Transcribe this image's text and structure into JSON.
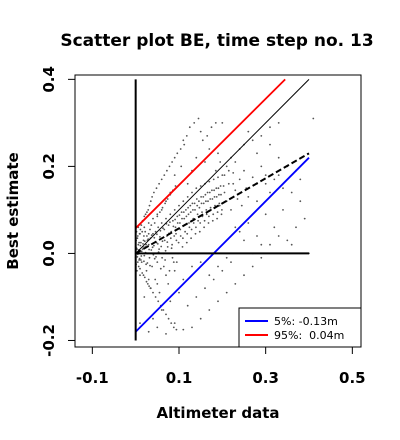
{
  "chart_data": {
    "type": "scatter",
    "title": "Scatter plot BE, time step no. 13",
    "xlabel": "Altimeter data",
    "ylabel": "Best estimate",
    "xlim": [
      -0.14,
      0.52
    ],
    "ylim": [
      -0.215,
      0.41
    ],
    "xticks": [
      -0.1,
      0.1,
      0.3,
      0.5
    ],
    "xtick_labels": [
      "-0.1",
      "0.1",
      "0.3",
      "0.5"
    ],
    "yticks": [
      -0.2,
      0.0,
      0.2,
      0.4
    ],
    "ytick_labels": [
      "-0.2",
      "0.0",
      "0.2",
      "0.4"
    ],
    "grid": false,
    "legend_position": "bottom-right",
    "colors": {
      "points": "#555555",
      "blue": "#0000ff",
      "red": "#ff0000",
      "black": "#000000"
    },
    "lines": [
      {
        "name": "5%: -0.13m",
        "legend_label": "5%: -0.13m",
        "style": "solid",
        "color": "#0000ff",
        "x": [
          0.0,
          0.4
        ],
        "y": [
          -0.18,
          0.22
        ]
      },
      {
        "name": "95%:  0.04m",
        "legend_label": "95%:  0.04m",
        "style": "solid",
        "color": "#ff0000",
        "x": [
          0.0,
          0.345
        ],
        "y": [
          0.058,
          0.4
        ]
      },
      {
        "name": "",
        "style": "thin",
        "color": "#000000",
        "x": [
          0.0,
          0.4
        ],
        "y": [
          0.0,
          0.4
        ]
      },
      {
        "name": "",
        "style": "dashed",
        "color": "#000000",
        "x": [
          0.0,
          0.4
        ],
        "y": [
          0.0,
          0.23
        ]
      },
      {
        "name": "",
        "style": "thick",
        "color": "#000000",
        "x": [
          0.0,
          0.4
        ],
        "y": [
          0.0,
          0.0
        ]
      },
      {
        "name": "",
        "style": "thick",
        "color": "#000000",
        "x": [
          0.0,
          0.0
        ],
        "y": [
          -0.2,
          0.4
        ]
      }
    ],
    "points": [
      [
        0.0,
        0.0
      ],
      [
        0.002,
        0.012
      ],
      [
        0.004,
        -0.008
      ],
      [
        0.006,
        0.02
      ],
      [
        0.008,
        -0.015
      ],
      [
        0.01,
        0.005
      ],
      [
        0.012,
        0.025
      ],
      [
        0.014,
        -0.02
      ],
      [
        0.016,
        0.01
      ],
      [
        0.018,
        0.03
      ],
      [
        0.02,
        -0.005
      ],
      [
        0.022,
        0.015
      ],
      [
        0.024,
        -0.025
      ],
      [
        0.026,
        0.04
      ],
      [
        0.028,
        0.0
      ],
      [
        0.03,
        0.02
      ],
      [
        0.032,
        -0.01
      ],
      [
        0.034,
        0.035
      ],
      [
        0.036,
        0.008
      ],
      [
        0.038,
        -0.03
      ],
      [
        0.04,
        0.045
      ],
      [
        0.042,
        0.018
      ],
      [
        0.044,
        -0.012
      ],
      [
        0.046,
        0.05
      ],
      [
        0.048,
        0.025
      ],
      [
        0.05,
        -0.02
      ],
      [
        0.052,
        0.06
      ],
      [
        0.054,
        0.01
      ],
      [
        0.056,
        0.038
      ],
      [
        0.058,
        -0.035
      ],
      [
        0.06,
        0.07
      ],
      [
        0.062,
        0.028
      ],
      [
        0.064,
        0.0
      ],
      [
        0.066,
        0.055
      ],
      [
        0.068,
        -0.015
      ],
      [
        0.07,
        0.08
      ],
      [
        0.072,
        0.04
      ],
      [
        0.074,
        0.015
      ],
      [
        0.076,
        0.065
      ],
      [
        0.078,
        -0.04
      ],
      [
        0.08,
        0.09
      ],
      [
        0.082,
        0.05
      ],
      [
        0.084,
        0.02
      ],
      [
        0.086,
        0.075
      ],
      [
        0.088,
        -0.02
      ],
      [
        0.09,
        0.1
      ],
      [
        0.092,
        0.06
      ],
      [
        0.094,
        0.03
      ],
      [
        0.096,
        0.085
      ],
      [
        0.098,
        0.0
      ],
      [
        0.1,
        0.11
      ],
      [
        0.102,
        0.07
      ],
      [
        0.104,
        0.04
      ],
      [
        0.106,
        0.095
      ],
      [
        0.108,
        0.015
      ],
      [
        0.11,
        0.12
      ],
      [
        0.112,
        0.08
      ],
      [
        0.114,
        0.05
      ],
      [
        0.116,
        0.1
      ],
      [
        0.118,
        0.025
      ],
      [
        0.12,
        0.13
      ],
      [
        0.122,
        0.09
      ],
      [
        0.124,
        0.06
      ],
      [
        0.126,
        0.11
      ],
      [
        0.128,
        0.035
      ],
      [
        0.13,
        0.14
      ],
      [
        0.132,
        0.1
      ],
      [
        0.134,
        0.07
      ],
      [
        0.136,
        0.115
      ],
      [
        0.138,
        0.045
      ],
      [
        0.14,
        0.15
      ],
      [
        0.142,
        0.11
      ],
      [
        0.144,
        0.075
      ],
      [
        0.146,
        0.12
      ],
      [
        0.148,
        0.05
      ],
      [
        0.15,
        0.155
      ],
      [
        0.152,
        0.115
      ],
      [
        0.154,
        0.085
      ],
      [
        0.156,
        0.13
      ],
      [
        0.158,
        0.06
      ],
      [
        0.16,
        0.16
      ],
      [
        0.162,
        0.12
      ],
      [
        0.164,
        0.09
      ],
      [
        0.166,
        0.14
      ],
      [
        0.168,
        0.07
      ],
      [
        0.17,
        0.165
      ],
      [
        0.172,
        0.125
      ],
      [
        0.174,
        0.1
      ],
      [
        0.176,
        0.145
      ],
      [
        0.178,
        0.075
      ],
      [
        0.18,
        0.17
      ],
      [
        0.182,
        0.13
      ],
      [
        0.184,
        0.105
      ],
      [
        0.186,
        0.15
      ],
      [
        0.188,
        0.08
      ],
      [
        0.19,
        0.175
      ],
      [
        0.192,
        0.135
      ],
      [
        0.194,
        0.11
      ],
      [
        0.196,
        0.155
      ],
      [
        0.198,
        0.09
      ],
      [
        0.2,
        0.18
      ],
      [
        0.205,
        0.14
      ],
      [
        0.21,
        0.12
      ],
      [
        0.215,
        0.16
      ],
      [
        0.22,
        0.1
      ],
      [
        0.225,
        0.185
      ],
      [
        0.23,
        0.145
      ],
      [
        0.235,
        0.125
      ],
      [
        0.24,
        0.17
      ],
      [
        0.245,
        0.11
      ],
      [
        0.25,
        0.19
      ],
      [
        0.255,
        0.15
      ],
      [
        0.26,
        0.13
      ],
      [
        0.27,
        0.175
      ],
      [
        0.28,
        0.12
      ],
      [
        0.29,
        0.2
      ],
      [
        0.3,
        0.16
      ],
      [
        0.31,
        0.14
      ],
      [
        0.33,
        0.18
      ],
      [
        0.35,
        0.03
      ],
      [
        0.36,
        0.02
      ],
      [
        0.38,
        0.17
      ],
      [
        0.4,
        0.0
      ],
      [
        0.41,
        0.31
      ],
      [
        0.2,
        0.3
      ],
      [
        0.15,
        0.28
      ],
      [
        0.11,
        0.26
      ],
      [
        0.14,
        0.22
      ],
      [
        0.17,
        0.24
      ],
      [
        0.26,
        0.28
      ],
      [
        0.13,
        0.19
      ],
      [
        0.16,
        0.21
      ],
      [
        0.12,
        0.16
      ],
      [
        0.105,
        0.2
      ],
      [
        0.09,
        0.18
      ],
      [
        0.08,
        0.14
      ],
      [
        0.07,
        0.12
      ],
      [
        0.06,
        0.1
      ],
      [
        0.05,
        0.09
      ],
      [
        0.04,
        0.08
      ],
      [
        0.03,
        0.07
      ],
      [
        0.02,
        0.06
      ],
      [
        0.015,
        0.05
      ],
      [
        0.01,
        0.045
      ],
      [
        0.005,
        0.04
      ],
      [
        0.03,
        -0.06
      ],
      [
        0.05,
        -0.07
      ],
      [
        0.07,
        -0.05
      ],
      [
        0.09,
        -0.04
      ],
      [
        0.11,
        -0.06
      ],
      [
        0.13,
        -0.03
      ],
      [
        0.15,
        -0.02
      ],
      [
        0.17,
        -0.05
      ],
      [
        0.19,
        -0.03
      ],
      [
        0.21,
        -0.01
      ],
      [
        0.1,
        -0.09
      ],
      [
        0.08,
        -0.11
      ],
      [
        0.06,
        -0.13
      ],
      [
        0.04,
        -0.15
      ],
      [
        0.12,
        -0.12
      ],
      [
        0.14,
        -0.1
      ],
      [
        0.16,
        -0.08
      ],
      [
        0.18,
        -0.06
      ],
      [
        0.2,
        -0.04
      ],
      [
        0.22,
        -0.02
      ],
      [
        0.02,
        -0.1
      ],
      [
        0.01,
        -0.05
      ],
      [
        0.025,
        -0.04
      ],
      [
        0.035,
        -0.08
      ],
      [
        0.045,
        -0.06
      ],
      [
        0.055,
        -0.09
      ],
      [
        0.065,
        -0.03
      ],
      [
        0.075,
        -0.07
      ],
      [
        0.085,
        -0.01
      ],
      [
        0.095,
        -0.02
      ],
      [
        0.24,
        0.05
      ],
      [
        0.26,
        0.07
      ],
      [
        0.28,
        0.04
      ],
      [
        0.3,
        0.09
      ],
      [
        0.32,
        0.06
      ],
      [
        0.34,
        0.1
      ],
      [
        0.23,
        0.06
      ],
      [
        0.25,
        0.03
      ],
      [
        0.27,
        0.0
      ],
      [
        0.29,
        0.02
      ],
      [
        0.31,
        0.25
      ],
      [
        0.33,
        0.22
      ],
      [
        0.35,
        0.2
      ],
      [
        0.37,
        0.19
      ],
      [
        0.28,
        0.23
      ],
      [
        0.22,
        0.22
      ],
      [
        0.24,
        0.24
      ],
      [
        0.19,
        0.23
      ],
      [
        0.21,
        0.2
      ],
      [
        0.23,
        0.21
      ],
      [
        0.185,
        0.19
      ],
      [
        0.195,
        0.21
      ],
      [
        0.205,
        0.18
      ],
      [
        0.215,
        0.19
      ],
      [
        0.225,
        0.16
      ],
      [
        0.005,
        -0.002
      ],
      [
        0.007,
        0.008
      ],
      [
        0.009,
        -0.012
      ],
      [
        0.011,
        0.018
      ],
      [
        0.013,
        -0.006
      ],
      [
        0.017,
        0.022
      ],
      [
        0.019,
        -0.018
      ],
      [
        0.021,
        0.028
      ],
      [
        0.023,
        0.002
      ],
      [
        0.027,
        -0.022
      ],
      [
        0.029,
        0.033
      ],
      [
        0.031,
        0.009
      ],
      [
        0.033,
        -0.028
      ],
      [
        0.037,
        0.042
      ],
      [
        0.039,
        0.014
      ],
      [
        0.041,
        -0.003
      ],
      [
        0.043,
        0.036
      ],
      [
        0.047,
        -0.008
      ],
      [
        0.049,
        0.044
      ],
      [
        0.051,
        0.022
      ],
      [
        0.053,
        0.003
      ],
      [
        0.057,
        0.052
      ],
      [
        0.059,
        0.016
      ],
      [
        0.061,
        -0.01
      ],
      [
        0.063,
        0.058
      ],
      [
        0.067,
        0.03
      ],
      [
        0.069,
        0.006
      ],
      [
        0.071,
        0.068
      ],
      [
        0.073,
        0.026
      ],
      [
        0.077,
        0.046
      ],
      [
        0.079,
        0.072
      ],
      [
        0.081,
        0.035
      ],
      [
        0.083,
        0.012
      ],
      [
        0.087,
        0.062
      ],
      [
        0.089,
        0.04
      ],
      [
        0.091,
        0.078
      ],
      [
        0.093,
        0.045
      ],
      [
        0.097,
        0.07
      ],
      [
        0.099,
        0.025
      ],
      [
        0.101,
        0.088
      ],
      [
        0.103,
        0.055
      ],
      [
        0.107,
        0.08
      ],
      [
        0.109,
        0.035
      ],
      [
        0.111,
        0.095
      ],
      [
        0.113,
        0.065
      ],
      [
        0.117,
        0.085
      ],
      [
        0.119,
        0.045
      ],
      [
        0.121,
        0.105
      ],
      [
        0.123,
        0.07
      ],
      [
        0.127,
        0.095
      ],
      [
        0.129,
        0.055
      ],
      [
        0.131,
        0.115
      ],
      [
        0.133,
        0.08
      ],
      [
        0.137,
        0.1
      ],
      [
        0.139,
        0.06
      ],
      [
        0.141,
        0.125
      ],
      [
        0.143,
        0.09
      ],
      [
        0.147,
        0.105
      ],
      [
        0.149,
        0.07
      ],
      [
        0.151,
        0.13
      ],
      [
        0.153,
        0.095
      ],
      [
        0.157,
        0.115
      ],
      [
        0.159,
        0.075
      ],
      [
        0.161,
        0.135
      ],
      [
        0.163,
        0.1
      ],
      [
        0.167,
        0.12
      ],
      [
        0.169,
        0.085
      ],
      [
        0.171,
        0.14
      ],
      [
        0.173,
        0.105
      ],
      [
        0.177,
        0.125
      ],
      [
        0.179,
        0.09
      ],
      [
        0.181,
        0.145
      ],
      [
        0.183,
        0.11
      ],
      [
        0.187,
        0.13
      ],
      [
        0.189,
        0.095
      ],
      [
        0.191,
        0.15
      ],
      [
        0.193,
        0.115
      ],
      [
        0.197,
        0.135
      ],
      [
        0.199,
        0.1
      ],
      [
        0.203,
        0.155
      ],
      [
        0.0,
        0.015
      ],
      [
        0.0,
        -0.01
      ],
      [
        0.001,
        0.03
      ],
      [
        0.001,
        -0.025
      ],
      [
        0.002,
        0.05
      ],
      [
        0.003,
        -0.04
      ],
      [
        0.003,
        0.01
      ],
      [
        0.004,
        0.035
      ],
      [
        0.005,
        -0.02
      ],
      [
        0.006,
        0.06
      ],
      [
        0.007,
        -0.03
      ],
      [
        0.008,
        0.025
      ],
      [
        0.009,
        0.045
      ],
      [
        0.01,
        -0.035
      ],
      [
        0.011,
        0.055
      ],
      [
        0.012,
        -0.015
      ],
      [
        0.013,
        0.065
      ],
      [
        0.014,
        0.005
      ],
      [
        0.015,
        -0.045
      ],
      [
        0.016,
        0.075
      ],
      [
        0.017,
        0.015
      ],
      [
        0.018,
        -0.05
      ],
      [
        0.019,
        0.04
      ],
      [
        0.02,
        0.085
      ],
      [
        0.021,
        -0.055
      ],
      [
        0.022,
        0.05
      ],
      [
        0.023,
        0.09
      ],
      [
        0.024,
        0.02
      ],
      [
        0.025,
        -0.065
      ],
      [
        0.026,
        0.095
      ],
      [
        0.027,
        0.03
      ],
      [
        0.028,
        -0.07
      ],
      [
        0.029,
        0.1
      ],
      [
        0.03,
        0.045
      ],
      [
        0.031,
        -0.075
      ],
      [
        0.032,
        0.11
      ],
      [
        0.033,
        0.055
      ],
      [
        0.034,
        -0.08
      ],
      [
        0.035,
        0.12
      ],
      [
        0.036,
        0.065
      ],
      [
        0.038,
        0.13
      ],
      [
        0.04,
        -0.09
      ],
      [
        0.042,
        0.14
      ],
      [
        0.044,
        0.07
      ],
      [
        0.046,
        -0.1
      ],
      [
        0.048,
        0.15
      ],
      [
        0.05,
        0.085
      ],
      [
        0.052,
        -0.11
      ],
      [
        0.054,
        0.16
      ],
      [
        0.056,
        0.095
      ],
      [
        0.058,
        -0.12
      ],
      [
        0.06,
        0.17
      ],
      [
        0.062,
        0.105
      ],
      [
        0.064,
        -0.13
      ],
      [
        0.066,
        0.18
      ],
      [
        0.068,
        0.115
      ],
      [
        0.07,
        -0.14
      ],
      [
        0.072,
        0.19
      ],
      [
        0.074,
        0.125
      ],
      [
        0.076,
        -0.15
      ],
      [
        0.078,
        0.2
      ],
      [
        0.08,
        0.135
      ],
      [
        0.082,
        -0.16
      ],
      [
        0.084,
        0.21
      ],
      [
        0.086,
        0.145
      ],
      [
        0.088,
        -0.17
      ],
      [
        0.09,
        0.22
      ],
      [
        0.092,
        0.155
      ],
      [
        0.094,
        -0.175
      ],
      [
        0.096,
        0.23
      ],
      [
        0.104,
        0.24
      ],
      [
        0.112,
        0.25
      ],
      [
        0.118,
        0.27
      ],
      [
        0.125,
        0.29
      ],
      [
        0.135,
        0.3
      ],
      [
        0.145,
        0.31
      ],
      [
        0.155,
        0.26
      ],
      [
        0.165,
        0.27
      ],
      [
        0.175,
        0.29
      ],
      [
        0.185,
        0.3
      ],
      [
        0.25,
        0.25
      ],
      [
        0.27,
        0.26
      ],
      [
        0.29,
        0.27
      ],
      [
        0.31,
        0.29
      ],
      [
        0.33,
        0.3
      ],
      [
        0.28,
        0.16
      ],
      [
        0.3,
        0.18
      ],
      [
        0.32,
        0.17
      ],
      [
        0.34,
        0.15
      ],
      [
        0.36,
        0.14
      ],
      [
        0.38,
        0.12
      ],
      [
        0.39,
        0.08
      ],
      [
        0.37,
        0.06
      ],
      [
        0.33,
        0.04
      ],
      [
        0.31,
        0.02
      ],
      [
        0.29,
        -0.01
      ],
      [
        0.27,
        -0.03
      ],
      [
        0.25,
        -0.05
      ],
      [
        0.23,
        -0.07
      ],
      [
        0.21,
        -0.09
      ],
      [
        0.19,
        -0.11
      ],
      [
        0.17,
        -0.13
      ],
      [
        0.15,
        -0.15
      ],
      [
        0.13,
        -0.17
      ],
      [
        0.11,
        -0.175
      ],
      [
        0.09,
        -0.16
      ],
      [
        0.07,
        -0.185
      ],
      [
        0.05,
        -0.17
      ],
      [
        0.03,
        -0.18
      ],
      [
        0.01,
        -0.16
      ]
    ]
  }
}
